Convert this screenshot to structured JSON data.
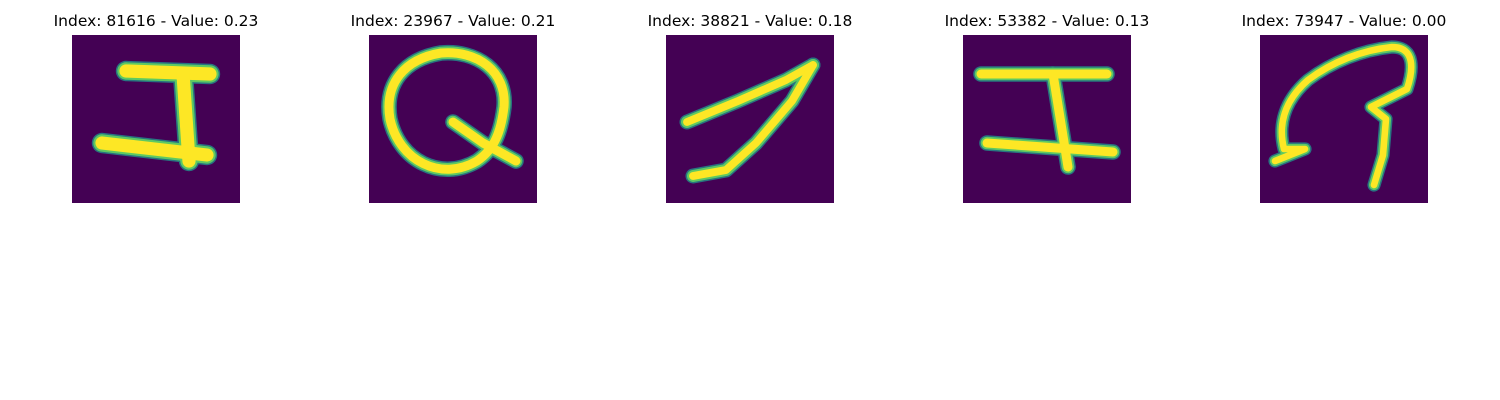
{
  "colors": {
    "background": "#440154",
    "foreground": "#fde725",
    "edge_mid": "#21918c",
    "edge_light": "#5ec962"
  },
  "panels": [
    {
      "title": "Index: 81616 - Value: 0.23",
      "glyph": "stroke-glyph-1"
    },
    {
      "title": "Index: 23967 - Value: 0.21",
      "glyph": "stroke-glyph-2"
    },
    {
      "title": "Index: 38821 - Value: 0.18",
      "glyph": "stroke-glyph-3"
    },
    {
      "title": "Index: 53382 - Value: 0.13",
      "glyph": "stroke-glyph-4"
    },
    {
      "title": "Index: 73947 - Value: 0.00",
      "glyph": "stroke-glyph-5"
    }
  ]
}
